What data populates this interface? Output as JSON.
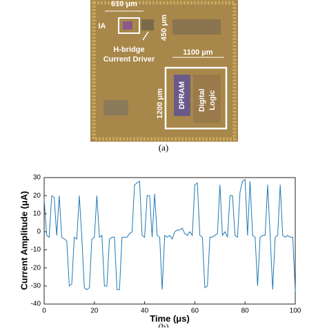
{
  "figure_a": {
    "dim_ia_width": "610 μm",
    "ia_label": "IA",
    "dim_ia_height": "450 μm",
    "hbridge_line1": "H-bridge",
    "hbridge_line2": "Current Driver",
    "dim_logic_width": "1100 μm",
    "dim_logic_height": "1200 μm",
    "dpram_label": "DPRAM",
    "logic_line1": "Digital",
    "logic_line2": "Logic",
    "caption": "(a)"
  },
  "chart_data": {
    "type": "line",
    "xlabel": "Time (μs)",
    "ylabel": "Current Amplitude (μA)",
    "caption": "(b)",
    "x": [
      0,
      1,
      2,
      3,
      4,
      5,
      6,
      7,
      8,
      9,
      10,
      11,
      12,
      13,
      14,
      15,
      16,
      17,
      18,
      19,
      20,
      21,
      22,
      23,
      24,
      25,
      26,
      27,
      28,
      29,
      30,
      31,
      32,
      33,
      34,
      35,
      36,
      37,
      38,
      39,
      40,
      41,
      42,
      43,
      44,
      45,
      46,
      47,
      48,
      49,
      50,
      51,
      52,
      53,
      54,
      55,
      56,
      57,
      58,
      59,
      60,
      61,
      62,
      63,
      64,
      65,
      66,
      67,
      68,
      69,
      70,
      71,
      72,
      73,
      74,
      75,
      76,
      77,
      78,
      79,
      80,
      81,
      82,
      83,
      84,
      85,
      86,
      87,
      88,
      89,
      90,
      91,
      92,
      93,
      94,
      95,
      96,
      97,
      98,
      99,
      100
    ],
    "series": [
      {
        "name": "current",
        "color": "#1f77b4",
        "values": [
          18,
          -2,
          -3,
          20,
          19,
          -2,
          20,
          -3,
          -4,
          -5,
          -30,
          -29,
          -3,
          -4,
          20,
          -3,
          -31,
          -32,
          -31,
          -4,
          -3,
          20,
          -3,
          -2,
          -30,
          -30,
          -4,
          -3,
          -3,
          -32,
          -32,
          -3,
          -3,
          -3,
          -1,
          0,
          26,
          27,
          28,
          -2,
          -3,
          20,
          20,
          -3,
          21,
          -2,
          -3,
          -32,
          -2,
          -3,
          -2,
          -4,
          0,
          1,
          1,
          2,
          -1,
          -2,
          0,
          -2,
          26,
          27,
          -2,
          -3,
          -31,
          -30,
          -3,
          -3,
          -2,
          -1,
          26,
          -2,
          0,
          -3,
          20,
          20,
          -2,
          -3,
          22,
          28,
          29,
          -2,
          28,
          -2,
          -3,
          -30,
          -3,
          -2,
          -2,
          26,
          -2,
          -32,
          -3,
          -2,
          26,
          -2,
          -3,
          -2,
          -3,
          -3,
          -33
        ]
      }
    ],
    "xlim": [
      0,
      100
    ],
    "xticks": [
      0,
      20,
      40,
      60,
      80,
      100
    ],
    "ylim": [
      -40,
      30
    ],
    "yticks": [
      -40,
      -30,
      -20,
      -10,
      0,
      10,
      20,
      30
    ],
    "grid": false
  }
}
